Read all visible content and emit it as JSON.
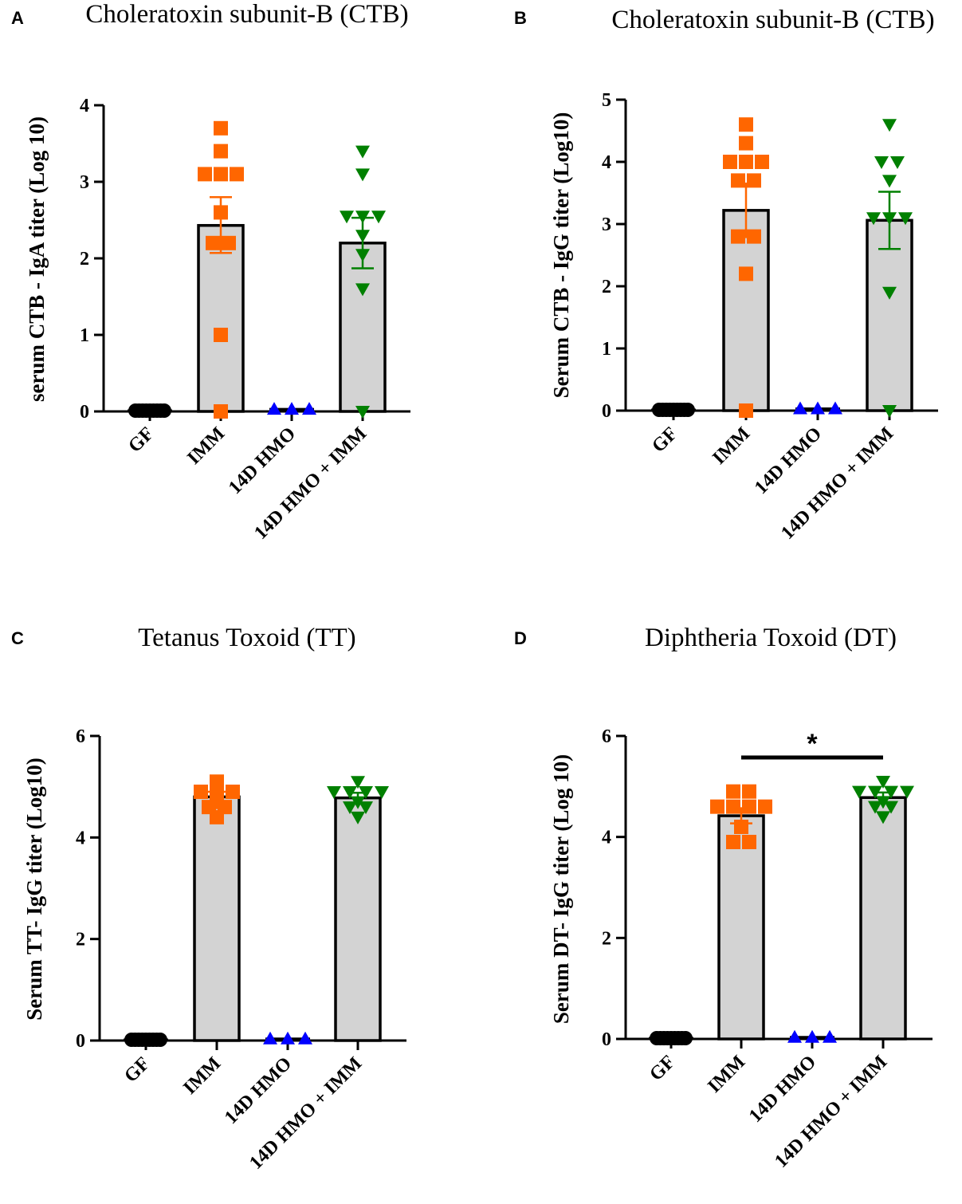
{
  "chart_data": [
    {
      "type": "bar",
      "panel_label": "A",
      "title": "Choleratoxin subunit-B  (CTB)",
      "ylabel": "serum CTB - IgA titer (Log 10)",
      "xlabel": "",
      "ylim": [
        0,
        4
      ],
      "yticks": [
        0,
        1,
        2,
        3,
        4
      ],
      "ytick_labels": [
        "0",
        "1",
        "2",
        "3",
        "4"
      ],
      "categories": [
        "GF",
        "IMM",
        "14D HMO",
        "14D HMO + IMM"
      ],
      "values": [
        0,
        2.43,
        0.02,
        2.2
      ],
      "error": [
        null,
        {
          "low": 2.07,
          "high": 2.8
        },
        null,
        {
          "low": 1.87,
          "high": 2.53
        }
      ],
      "series": [
        {
          "name": "GF",
          "color": "#000000",
          "marker": "circle",
          "points": [
            0,
            0,
            0,
            0,
            0,
            0,
            0,
            0,
            0
          ]
        },
        {
          "name": "IMM",
          "color": "#ff6600",
          "marker": "square",
          "points": [
            3.7,
            3.4,
            3.1,
            3.1,
            3.1,
            2.6,
            2.2,
            2.2,
            1.0,
            0.0
          ]
        },
        {
          "name": "14D HMO",
          "color": "#0000ff",
          "marker": "triangle-up",
          "points": [
            0.02,
            0.02,
            0.02
          ]
        },
        {
          "name": "14D HMO + IMM",
          "color": "#008000",
          "marker": "triangle-down",
          "points": [
            3.4,
            3.1,
            2.55,
            2.55,
            2.55,
            2.3,
            2.05,
            1.6,
            0.0
          ]
        }
      ],
      "annotations": []
    },
    {
      "type": "bar",
      "panel_label": "B",
      "title": "Choleratoxin subunit-B  (CTB)",
      "ylabel": "Serum CTB - IgG titer  (Log10)",
      "xlabel": "",
      "ylim": [
        0,
        5
      ],
      "yticks": [
        0,
        1,
        2,
        3,
        4,
        5
      ],
      "ytick_labels": [
        "0",
        "1",
        "2",
        "3",
        "4",
        "5"
      ],
      "categories": [
        "GF",
        "IMM",
        "14D HMO",
        "14D HMO + IMM"
      ],
      "values": [
        0,
        3.22,
        0.02,
        3.06
      ],
      "error": [
        null,
        {
          "low": 2.79,
          "high": 3.65
        },
        null,
        {
          "low": 2.6,
          "high": 3.52
        }
      ],
      "series": [
        {
          "name": "GF",
          "color": "#000000",
          "marker": "circle",
          "points": [
            0,
            0,
            0,
            0,
            0,
            0,
            0,
            0,
            0
          ]
        },
        {
          "name": "IMM",
          "color": "#ff6600",
          "marker": "square",
          "points": [
            4.6,
            4.3,
            4.0,
            4.0,
            4.0,
            3.7,
            3.7,
            2.8,
            2.8,
            2.2,
            0.0
          ]
        },
        {
          "name": "14D HMO",
          "color": "#0000ff",
          "marker": "triangle-up",
          "points": [
            0.02,
            0.02,
            0.02
          ]
        },
        {
          "name": "14D HMO + IMM",
          "color": "#008000",
          "marker": "triangle-down",
          "points": [
            4.6,
            4.0,
            4.0,
            3.7,
            3.1,
            3.1,
            3.1,
            1.9,
            0.0
          ]
        }
      ],
      "annotations": []
    },
    {
      "type": "bar",
      "panel_label": "C",
      "title": "Tetanus Toxoid  (TT)",
      "ylabel": "Serum  TT- IgG titer (Log10)",
      "xlabel": "",
      "ylim": [
        0,
        6
      ],
      "yticks": [
        0,
        2,
        4,
        6
      ],
      "ytick_labels": [
        "0",
        "2",
        "4",
        "6"
      ],
      "categories": [
        "GF",
        "IMM",
        "14D HMO",
        "14D HMO + IMM"
      ],
      "values": [
        0,
        4.8,
        0.02,
        4.78
      ],
      "error": [
        null,
        {
          "low": 4.7,
          "high": 4.9
        },
        null,
        {
          "low": 4.68,
          "high": 4.88
        }
      ],
      "series": [
        {
          "name": "GF",
          "color": "#000000",
          "marker": "circle",
          "points": [
            0,
            0,
            0,
            0,
            0,
            0,
            0,
            0,
            0
          ]
        },
        {
          "name": "IMM",
          "color": "#ff6600",
          "marker": "square",
          "points": [
            5.1,
            4.9,
            4.9,
            4.9,
            4.8,
            4.7,
            4.6,
            4.6,
            4.4
          ]
        },
        {
          "name": "14D HMO",
          "color": "#0000ff",
          "marker": "triangle-up",
          "points": [
            0.02,
            0.02,
            0.02
          ]
        },
        {
          "name": "14D HMO + IMM",
          "color": "#008000",
          "marker": "triangle-down",
          "points": [
            5.1,
            4.9,
            4.9,
            4.9,
            4.9,
            4.7,
            4.6,
            4.6,
            4.4
          ]
        }
      ],
      "annotations": []
    },
    {
      "type": "bar",
      "panel_label": "D",
      "title": "Diphtheria Toxoid (DT)",
      "ylabel": "Serum DT- IgG titer  (Log 10)",
      "xlabel": "",
      "ylim": [
        0,
        6
      ],
      "yticks": [
        0,
        2,
        4,
        6
      ],
      "ytick_labels": [
        "0",
        "2",
        "4",
        "6"
      ],
      "categories": [
        "GF",
        "IMM",
        "14D HMO",
        "14D HMO + IMM"
      ],
      "values": [
        0,
        4.42,
        0.02,
        4.78
      ],
      "error": [
        null,
        {
          "low": 4.27,
          "high": 4.57
        },
        null,
        {
          "low": 4.68,
          "high": 4.88
        }
      ],
      "series": [
        {
          "name": "GF",
          "color": "#000000",
          "marker": "circle",
          "points": [
            0,
            0,
            0,
            0,
            0,
            0,
            0,
            0,
            0
          ]
        },
        {
          "name": "IMM",
          "color": "#ff6600",
          "marker": "square",
          "points": [
            4.9,
            4.9,
            4.6,
            4.6,
            4.6,
            4.6,
            4.2,
            3.9,
            3.9
          ]
        },
        {
          "name": "14D HMO",
          "color": "#0000ff",
          "marker": "triangle-up",
          "points": [
            0.02,
            0.02,
            0.02
          ]
        },
        {
          "name": "14D HMO + IMM",
          "color": "#008000",
          "marker": "triangle-down",
          "points": [
            5.1,
            4.9,
            4.9,
            4.9,
            4.9,
            4.7,
            4.6,
            4.6,
            4.4
          ]
        }
      ],
      "annotations": [
        {
          "type": "significance",
          "from": "IMM",
          "to": "14D HMO + IMM",
          "text": "*"
        }
      ]
    }
  ]
}
